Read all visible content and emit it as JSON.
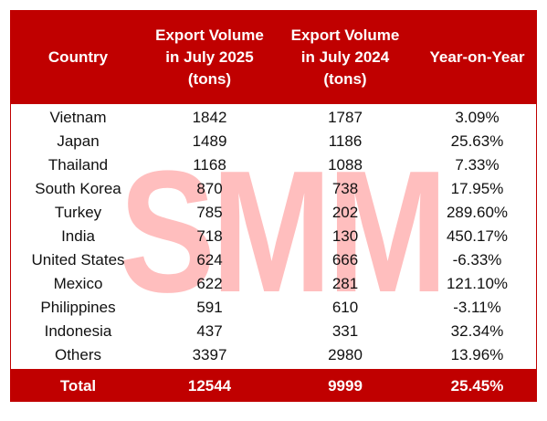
{
  "header": {
    "country": "Country",
    "jul2025": [
      "Export Volume",
      "in July 2025",
      "(tons)"
    ],
    "jul2024": [
      "Export Volume",
      "in July 2024",
      "(tons)"
    ],
    "yoy": "Year-on-Year"
  },
  "rows": [
    {
      "country": "Vietnam",
      "v2025": "1842",
      "v2024": "1787",
      "yoy": "3.09%"
    },
    {
      "country": "Japan",
      "v2025": "1489",
      "v2024": "1186",
      "yoy": "25.63%"
    },
    {
      "country": "Thailand",
      "v2025": "1168",
      "v2024": "1088",
      "yoy": "7.33%"
    },
    {
      "country": "South Korea",
      "v2025": "870",
      "v2024": "738",
      "yoy": "17.95%"
    },
    {
      "country": "Turkey",
      "v2025": "785",
      "v2024": "202",
      "yoy": "289.60%"
    },
    {
      "country": "India",
      "v2025": "718",
      "v2024": "130",
      "yoy": "450.17%"
    },
    {
      "country": "United States",
      "v2025": "624",
      "v2024": "666",
      "yoy": "-6.33%"
    },
    {
      "country": "Mexico",
      "v2025": "622",
      "v2024": "281",
      "yoy": "121.10%"
    },
    {
      "country": "Philippines",
      "v2025": "591",
      "v2024": "610",
      "yoy": "-3.11%"
    },
    {
      "country": "Indonesia",
      "v2025": "437",
      "v2024": "331",
      "yoy": "32.34%"
    },
    {
      "country": "Others",
      "v2025": "3397",
      "v2024": "2980",
      "yoy": "13.96%"
    }
  ],
  "total": {
    "label": "Total",
    "v2025": "12544",
    "v2024": "9999",
    "yoy": "25.45%"
  },
  "watermark": {
    "text": "SMM",
    "color": "#ffb3b3"
  },
  "colors": {
    "accent": "#c00000",
    "header_text": "#ffffff"
  }
}
